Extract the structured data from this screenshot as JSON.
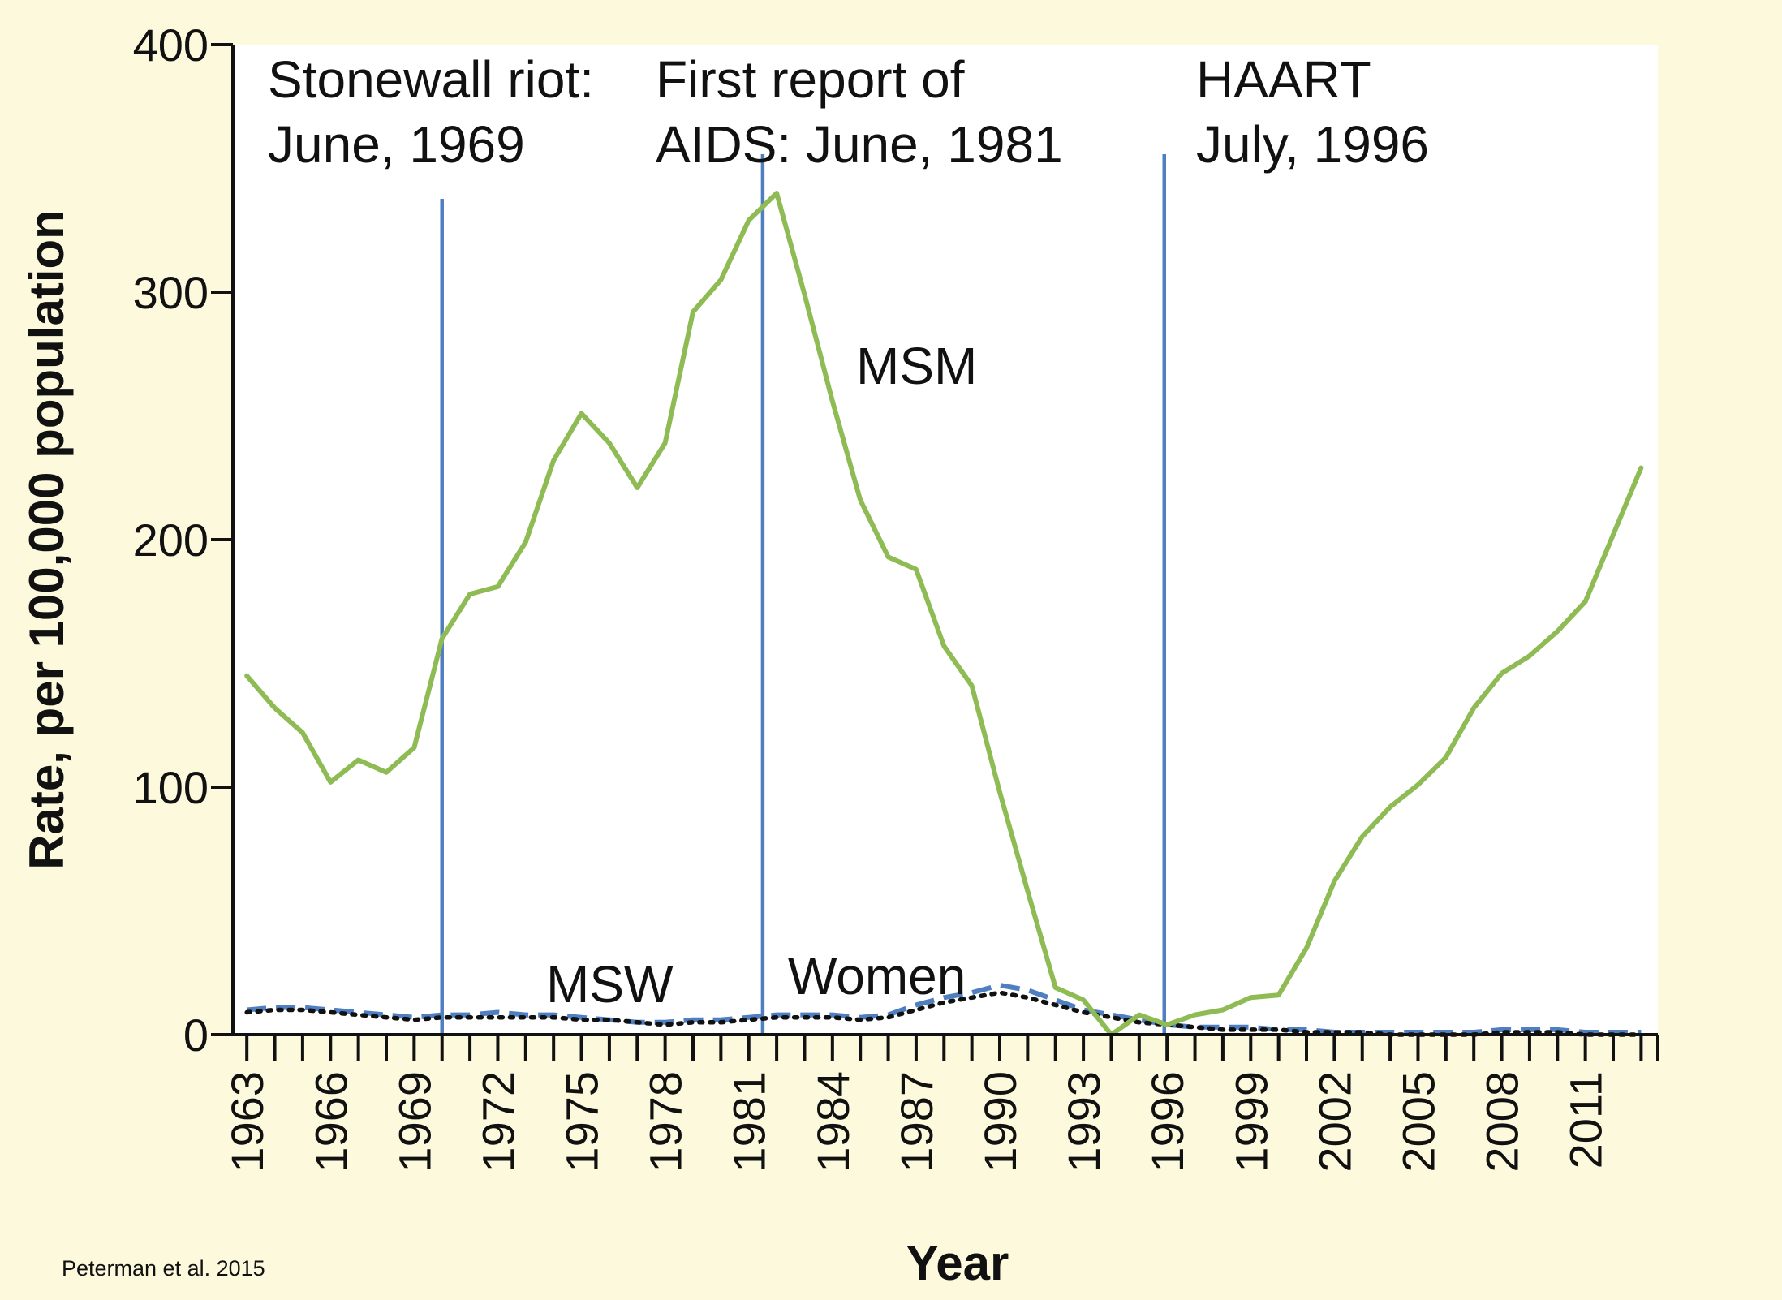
{
  "colors": {
    "background": "#fdf9dc",
    "plot_background": "#ffffff",
    "axis": "#111111",
    "event_line": "#4f7fc0",
    "msm": "#8fbb55",
    "msw": "#4f7fc0",
    "women": "#111111"
  },
  "source": "Peterman et al. 2015",
  "chart_data": {
    "type": "line",
    "xlabel": "Year",
    "ylabel": "Rate, per 100,000 population",
    "xlim": [
      1962.5,
      2013.6
    ],
    "ylim": [
      0,
      400
    ],
    "yticks": [
      0,
      100,
      200,
      300,
      400
    ],
    "xtick_labels": [
      "1963",
      "1966",
      "1969",
      "1972",
      "1975",
      "1978",
      "1981",
      "1984",
      "1987",
      "1990",
      "1993",
      "1996",
      "1999",
      "2002",
      "2005",
      "2008",
      "2011"
    ],
    "x": [
      1963,
      1964,
      1965,
      1966,
      1967,
      1968,
      1969,
      1970,
      1971,
      1972,
      1973,
      1974,
      1975,
      1976,
      1977,
      1978,
      1979,
      1980,
      1981,
      1982,
      1983,
      1984,
      1985,
      1986,
      1987,
      1988,
      1989,
      1990,
      1991,
      1992,
      1993,
      1994,
      1995,
      1996,
      1997,
      1998,
      1999,
      2000,
      2001,
      2002,
      2003,
      2004,
      2005,
      2006,
      2007,
      2008,
      2009,
      2010,
      2011,
      2012,
      2013
    ],
    "series": [
      {
        "name": "MSM",
        "style": "solid",
        "values": [
          145,
          132,
          122,
          102,
          111,
          106,
          116,
          160,
          178,
          181,
          199,
          232,
          251,
          239,
          221,
          239,
          292,
          305,
          329,
          340,
          299,
          256,
          216,
          193,
          188,
          157,
          141,
          98,
          58,
          19,
          14,
          0,
          8,
          4,
          8,
          10,
          15,
          16,
          35,
          62,
          80,
          92,
          101,
          112,
          132,
          146,
          153,
          163,
          175,
          202,
          229
        ]
      },
      {
        "name": "MSW",
        "style": "dashed",
        "values": [
          10,
          11,
          11,
          10,
          9,
          8,
          7,
          8,
          8,
          9,
          8,
          8,
          7,
          6,
          5,
          5,
          6,
          6,
          7,
          8,
          8,
          8,
          7,
          8,
          12,
          15,
          17,
          20,
          18,
          14,
          10,
          8,
          6,
          4,
          3,
          3,
          3,
          2,
          2,
          1,
          1,
          1,
          1,
          1,
          1,
          2,
          2,
          2,
          1,
          1,
          1
        ]
      },
      {
        "name": "Women",
        "style": "dotted",
        "values": [
          9,
          10,
          10,
          9,
          8,
          7,
          6,
          7,
          7,
          7,
          7,
          7,
          6,
          6,
          5,
          4,
          5,
          5,
          6,
          7,
          7,
          7,
          6,
          7,
          10,
          13,
          15,
          17,
          15,
          12,
          9,
          7,
          5,
          4,
          3,
          2,
          2,
          2,
          1,
          1,
          1,
          0,
          0,
          0,
          0,
          1,
          1,
          1,
          0,
          0,
          0
        ]
      }
    ],
    "series_labels": [
      "MSM",
      "MSW",
      "Women"
    ],
    "events": [
      {
        "x": 1970,
        "line1": "Stonewall riot:",
        "line2": "June, 1969"
      },
      {
        "x": 1981.5,
        "line1": "First report of",
        "line2": "AIDS:  June, 1981"
      },
      {
        "x": 1995.9,
        "line1": "HAART",
        "line2": "July, 1996"
      }
    ],
    "grid": false,
    "legend": "none"
  }
}
